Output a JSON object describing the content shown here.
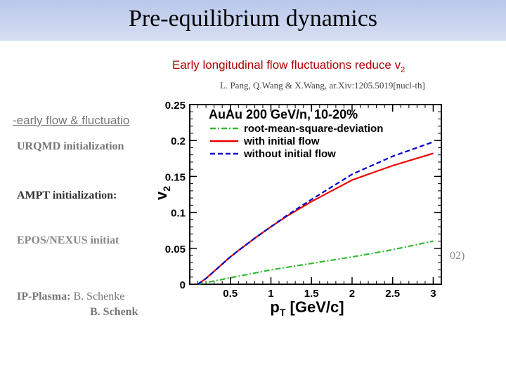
{
  "header": {
    "title": "Pre-equilibrium dynamics"
  },
  "subtitle": {
    "text": "Early longitudinal flow fluctuations reduce v",
    "sub": "2"
  },
  "citation": "L. Pang, Q.Wang & X.Wang, ar.Xiv:1205.5019[nucl-th]",
  "background_text": {
    "line1": "-early flow & fluctuatio",
    "line2": "URQMD initialization",
    "line3": "AMPT initialization:",
    "line4": "EPOS/NEXUS  initiat",
    "line5": "02)",
    "line6_bold": "IP-Plasma:",
    "line6_rest": " B. Schenke",
    "line7": "B. Schenk"
  },
  "chart_data": {
    "type": "line",
    "title": "AuAu 200 GeV/n, 10-20%",
    "xlabel": "p",
    "xlabel_sub": "T",
    "xlabel_unit": " [GeV/c]",
    "ylabel": "v",
    "ylabel_sub": "2",
    "xlim": [
      0,
      3.1
    ],
    "ylim": [
      0,
      0.25
    ],
    "xticks": [
      0.5,
      1,
      1.5,
      2,
      2.5,
      3
    ],
    "xtick_labels": [
      "0.5",
      "1",
      "1.5",
      "2",
      "2.5",
      "3"
    ],
    "yticks": [
      0,
      0.05,
      0.1,
      0.15,
      0.2,
      0.25
    ],
    "ytick_labels": [
      "0",
      "0.05",
      "0.1",
      "0.15",
      "0.2",
      "0.25"
    ],
    "grid": false,
    "legend_position": "top-left",
    "series": [
      {
        "name": "root-mean-square-deviation",
        "color": "#33bb33",
        "dash": "dash-dot",
        "x": [
          0.1,
          0.5,
          1.0,
          1.5,
          2.0,
          2.5,
          3.0
        ],
        "y": [
          0.0,
          0.009,
          0.02,
          0.029,
          0.038,
          0.048,
          0.06
        ]
      },
      {
        "name": "with initial flow",
        "color": "#ee0000",
        "dash": "solid",
        "x": [
          0.1,
          0.2,
          0.3,
          0.4,
          0.5,
          0.6,
          0.8,
          1.0,
          1.2,
          1.5,
          1.8,
          2.0,
          2.5,
          3.0
        ],
        "y": [
          0.0,
          0.008,
          0.018,
          0.028,
          0.038,
          0.047,
          0.064,
          0.08,
          0.095,
          0.115,
          0.133,
          0.145,
          0.165,
          0.182
        ]
      },
      {
        "name": "without initial flow",
        "color": "#0000cc",
        "dash": "dashed",
        "x": [
          0.1,
          0.2,
          0.3,
          0.4,
          0.5,
          0.6,
          0.8,
          1.0,
          1.2,
          1.5,
          1.8,
          2.0,
          2.5,
          3.0
        ],
        "y": [
          0.0,
          0.008,
          0.018,
          0.028,
          0.038,
          0.047,
          0.064,
          0.08,
          0.096,
          0.118,
          0.139,
          0.153,
          0.178,
          0.198
        ]
      }
    ]
  }
}
